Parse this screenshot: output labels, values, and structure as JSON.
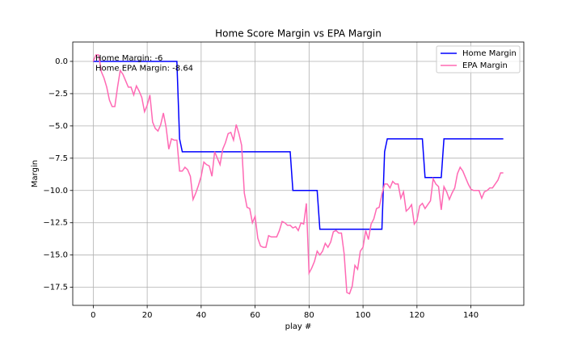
{
  "chart_data": {
    "type": "line",
    "title": "Home Score Margin vs EPA Margin",
    "x_label": "play #",
    "y_label": "Margin",
    "annotations": [
      "Home Margin: -6",
      "Home EPA Margin: -8.64"
    ],
    "x": [
      0,
      1,
      2,
      3,
      4,
      5,
      6,
      7,
      8,
      9,
      10,
      11,
      12,
      13,
      14,
      15,
      16,
      17,
      18,
      19,
      20,
      21,
      22,
      23,
      24,
      25,
      26,
      27,
      28,
      29,
      30,
      31,
      32,
      33,
      34,
      35,
      36,
      37,
      38,
      39,
      40,
      41,
      42,
      43,
      44,
      45,
      46,
      47,
      48,
      49,
      50,
      51,
      52,
      53,
      54,
      55,
      56,
      57,
      58,
      59,
      60,
      61,
      62,
      63,
      64,
      65,
      66,
      67,
      68,
      69,
      70,
      71,
      72,
      73,
      74,
      75,
      76,
      77,
      78,
      79,
      80,
      81,
      82,
      83,
      84,
      85,
      86,
      87,
      88,
      89,
      90,
      91,
      92,
      93,
      94,
      95,
      96,
      97,
      98,
      99,
      100,
      101,
      102,
      103,
      104,
      105,
      106,
      107,
      108,
      109,
      110,
      111,
      112,
      113,
      114,
      115,
      116,
      117,
      118,
      119,
      120,
      121,
      122,
      123,
      124,
      125,
      126,
      127,
      128,
      129,
      130,
      131,
      132,
      133,
      134,
      135,
      136,
      137,
      138,
      139,
      140,
      141,
      142,
      143,
      144,
      145,
      146,
      147,
      148,
      149,
      150,
      151,
      152
    ],
    "series": [
      {
        "name": "Home Margin",
        "color": "#0000ff",
        "values": [
          0,
          0,
          0,
          0,
          0,
          0,
          0,
          0,
          0,
          0,
          0,
          0,
          0,
          0,
          0,
          0,
          0,
          0,
          0,
          0,
          0,
          0,
          0,
          0,
          0,
          0,
          0,
          0,
          0,
          0,
          0,
          0,
          -6,
          -7,
          -7,
          -7,
          -7,
          -7,
          -7,
          -7,
          -7,
          -7,
          -7,
          -7,
          -7,
          -7,
          -7,
          -7,
          -7,
          -7,
          -7,
          -7,
          -7,
          -7,
          -7,
          -7,
          -7,
          -7,
          -7,
          -7,
          -7,
          -7,
          -7,
          -7,
          -7,
          -7,
          -7,
          -7,
          -7,
          -7,
          -7,
          -7,
          -7,
          -7,
          -10,
          -10,
          -10,
          -10,
          -10,
          -10,
          -10,
          -10,
          -10,
          -10,
          -13,
          -13,
          -13,
          -13,
          -13,
          -13,
          -13,
          -13,
          -13,
          -13,
          -13,
          -13,
          -13,
          -13,
          -13,
          -13,
          -13,
          -13,
          -13,
          -13,
          -13,
          -13,
          -13,
          -13,
          -7,
          -6,
          -6,
          -6,
          -6,
          -6,
          -6,
          -6,
          -6,
          -6,
          -6,
          -6,
          -6,
          -6,
          -6,
          -9,
          -9,
          -9,
          -9,
          -9,
          -9,
          -9,
          -6,
          -6,
          -6,
          -6,
          -6,
          -6,
          -6,
          -6,
          -6,
          -6,
          -6,
          -6,
          -6,
          -6,
          -6,
          -6,
          -6,
          -6,
          -6,
          -6,
          -6,
          -6,
          -6
        ]
      },
      {
        "name": "EPA Margin",
        "color": "#ff69b4",
        "values": [
          0.0,
          0.5,
          0.5,
          -0.8,
          -1.3,
          -2.0,
          -3.0,
          -3.5,
          -3.5,
          -2.0,
          -0.7,
          -1.0,
          -1.5,
          -2.0,
          -2.0,
          -2.6,
          -1.9,
          -2.3,
          -2.8,
          -3.9,
          -3.4,
          -2.6,
          -4.7,
          -5.2,
          -5.4,
          -4.9,
          -4.0,
          -5.1,
          -6.8,
          -6.0,
          -6.1,
          -6.1,
          -8.5,
          -8.5,
          -8.2,
          -8.4,
          -8.9,
          -10.7,
          -10.2,
          -9.6,
          -8.9,
          -7.8,
          -8.0,
          -8.1,
          -8.9,
          -7.0,
          -7.5,
          -8.0,
          -6.8,
          -6.3,
          -5.6,
          -5.5,
          -6.1,
          -4.9,
          -5.6,
          -6.5,
          -10.2,
          -11.3,
          -11.4,
          -12.5,
          -12.0,
          -13.7,
          -14.3,
          -14.4,
          -14.4,
          -13.5,
          -13.6,
          -13.6,
          -13.6,
          -13.1,
          -12.4,
          -12.5,
          -12.7,
          -12.7,
          -12.9,
          -12.8,
          -13.1,
          -12.5,
          -12.6,
          -11.0,
          -16.4,
          -16.0,
          -15.5,
          -14.7,
          -15.0,
          -14.7,
          -14.1,
          -14.4,
          -14.0,
          -13.2,
          -13.1,
          -13.3,
          -13.3,
          -14.9,
          -17.9,
          -18.0,
          -17.4,
          -15.8,
          -16.1,
          -14.7,
          -14.4,
          -13.1,
          -13.8,
          -12.6,
          -12.2,
          -11.4,
          -11.3,
          -10.3,
          -9.5,
          -9.5,
          -9.8,
          -9.3,
          -9.5,
          -9.5,
          -10.6,
          -10.1,
          -11.6,
          -11.4,
          -11.1,
          -12.6,
          -12.3,
          -11.2,
          -11.0,
          -11.4,
          -11.1,
          -10.8,
          -9.1,
          -9.5,
          -9.7,
          -11.5,
          -9.7,
          -10.1,
          -10.7,
          -10.2,
          -9.8,
          -8.7,
          -8.2,
          -8.5,
          -9.0,
          -9.5,
          -9.9,
          -10.0,
          -10.0,
          -10.0,
          -10.6,
          -10.1,
          -10.0,
          -9.8,
          -9.8,
          -9.5,
          -9.2,
          -8.64,
          -8.64
        ]
      }
    ],
    "xlim": [
      -7.6,
      159.6
    ],
    "ylim": [
      -18.9,
      1.5
    ],
    "xticks": [
      0,
      20,
      40,
      60,
      80,
      100,
      120,
      140
    ],
    "yticks": [
      {
        "value": 0,
        "label": "0.0"
      },
      {
        "value": -2.5,
        "label": "−2.5"
      },
      {
        "value": -5,
        "label": "−5.0"
      },
      {
        "value": -7.5,
        "label": "−7.5"
      },
      {
        "value": -10,
        "label": "−10.0"
      },
      {
        "value": -12.5,
        "label": "−12.5"
      },
      {
        "value": -15,
        "label": "−15.0"
      },
      {
        "value": -17.5,
        "label": "−17.5"
      }
    ],
    "grid": true,
    "legend": "upper right"
  }
}
